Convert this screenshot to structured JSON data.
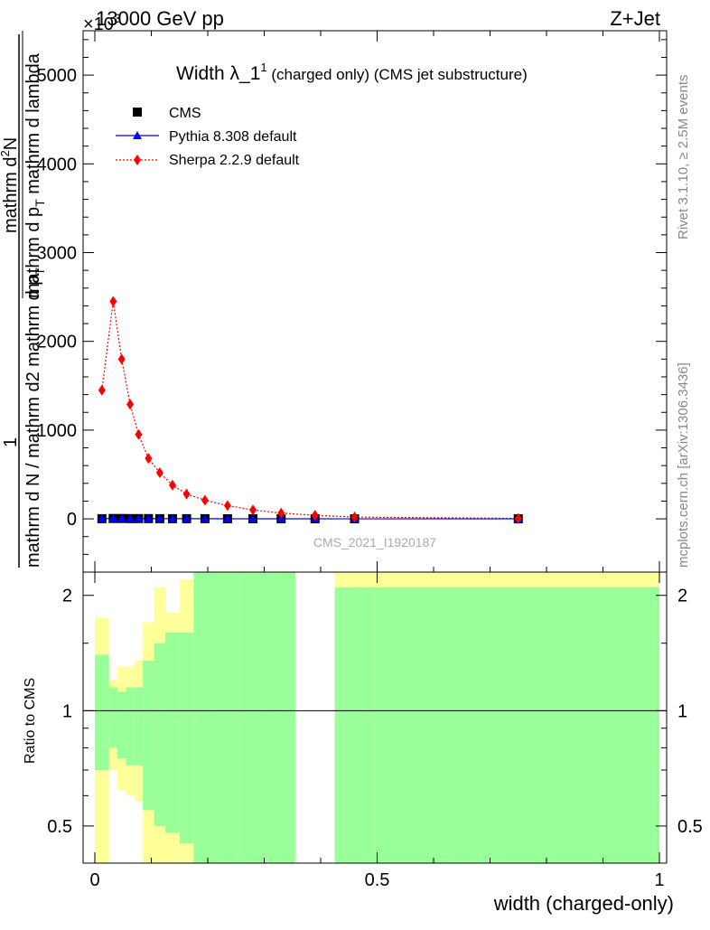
{
  "header": {
    "top_left": "13000 GeV pp",
    "exponent_label": "×10",
    "exponent_sup": "3",
    "top_right": "Z+Jet"
  },
  "side_labels": {
    "rivet": "Rivet 3.1.10, ≥ 2.5M events",
    "mcplots": "mcplots.cern.ch [arXiv:1306.3436]"
  },
  "main_plot": {
    "title_main": "Width λ_1",
    "title_sup": "1",
    "title_suffix": " (charged only) (CMS jet substructure)",
    "ylabel_line1_num": "1",
    "ylabel_line1_den": "mathrm d N / mathrm d2 mathrm d p",
    "ylabel_line1_den_sub": "T",
    "ylabel_line2_num": "mathrm d",
    "ylabel_line2_num_sup": "2",
    "ylabel_line2_num_tail": "N",
    "ylabel_line2_den": "mathrm d p",
    "ylabel_line2_den_sub": "T",
    "ylabel_line2_den_tail": " mathrm d lambda",
    "watermark": "CMS_2021_I1920187",
    "y_ticks": [
      "0",
      "1000",
      "2000",
      "3000",
      "4000",
      "5000"
    ],
    "legend": [
      {
        "label": "CMS",
        "color": "#000000",
        "marker": "square"
      },
      {
        "label": "Pythia 8.308 default",
        "color": "#0000ff",
        "marker": "triangle"
      },
      {
        "label": "Sherpa 2.2.9 default",
        "color": "#ff0000",
        "marker": "diamond"
      }
    ]
  },
  "ratio_plot": {
    "ylabel": "Ratio to CMS",
    "y_ticks": [
      "0.5",
      "1",
      "2"
    ],
    "x_ticks": [
      "0",
      "0.5",
      "1"
    ],
    "xlabel": "width (charged-only)"
  },
  "chart_data": [
    {
      "type": "line",
      "xlim": [
        0,
        1
      ],
      "ylim": [
        -600,
        5500
      ],
      "yscale_factor": 1000,
      "series": [
        {
          "name": "CMS",
          "color": "#000000",
          "x": [
            0.0125,
            0.0325,
            0.0475,
            0.0625,
            0.0775,
            0.095,
            0.115,
            0.1375,
            0.1625,
            0.195,
            0.235,
            0.28,
            0.33,
            0.39,
            0.46,
            0.75
          ],
          "y": [
            2,
            4,
            4,
            3,
            3,
            3,
            2,
            2,
            2,
            2,
            1,
            1,
            1,
            0.5,
            0.3,
            0.1
          ]
        },
        {
          "name": "Pythia 8.308 default",
          "color": "#0000ff",
          "x": [
            0.0125,
            0.0325,
            0.0475,
            0.0625,
            0.0775,
            0.095,
            0.115,
            0.1375,
            0.1625,
            0.195,
            0.235,
            0.28,
            0.33,
            0.39,
            0.46,
            0.75
          ],
          "y": [
            2,
            5,
            5,
            4,
            3,
            3,
            2,
            2,
            2,
            2,
            1,
            1,
            1,
            0.5,
            0.3,
            0.1
          ]
        },
        {
          "name": "Sherpa 2.2.9 default",
          "color": "#ff0000",
          "x": [
            0.0125,
            0.0325,
            0.0475,
            0.0625,
            0.0775,
            0.095,
            0.115,
            0.1375,
            0.1625,
            0.195,
            0.235,
            0.28,
            0.33,
            0.39,
            0.46,
            0.75
          ],
          "y": [
            1450,
            2450,
            1800,
            1290,
            950,
            680,
            520,
            380,
            280,
            210,
            150,
            100,
            65,
            40,
            20,
            5
          ]
        }
      ]
    },
    {
      "type": "area",
      "xlim": [
        0,
        1
      ],
      "ylim": [
        0.4,
        2.3
      ],
      "yscale": "log",
      "reference_line": 1,
      "bins": [
        0,
        0.025,
        0.04,
        0.055,
        0.07,
        0.085,
        0.105,
        0.125,
        0.15,
        0.175,
        0.215,
        0.255,
        0.305,
        0.355,
        0.425,
        0.495,
        1.0
      ],
      "band_inner_green": {
        "upper": [
          1.4,
          1.15,
          1.12,
          1.15,
          1.15,
          1.35,
          1.5,
          1.6,
          1.6,
          2.3,
          2.3,
          2.3,
          2.3,
          null,
          2.1,
          2.1
        ],
        "lower": [
          0.7,
          0.8,
          0.75,
          0.72,
          0.72,
          0.55,
          0.5,
          0.48,
          0.45,
          0.4,
          0.4,
          0.4,
          0.4,
          null,
          0.4,
          0.4
        ]
      },
      "band_outer_yellow": {
        "upper": [
          1.75,
          1.2,
          1.3,
          1.3,
          1.35,
          1.7,
          2.1,
          1.8,
          2.2,
          2.3,
          2.3,
          2.3,
          2.3,
          null,
          2.3,
          2.3
        ],
        "lower": [
          0.4,
          0.7,
          0.62,
          0.6,
          0.58,
          0.4,
          0.4,
          0.4,
          0.4,
          0.4,
          0.4,
          0.4,
          0.4,
          null,
          0.4,
          0.4
        ]
      }
    }
  ]
}
